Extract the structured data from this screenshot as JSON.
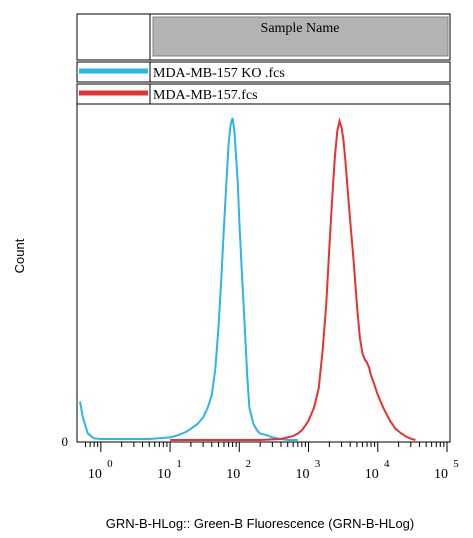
{
  "chart_data": {
    "type": "line",
    "ylabel": "Count",
    "xlabel": "GRN-B-HLog:: Green-B Fluorescence (GRN-B-HLog)",
    "x_scale": "log",
    "xlim": [
      0.5,
      100000
    ],
    "ylim": [
      0,
      1.0
    ],
    "x_tick_values": [
      1,
      10,
      100,
      1000,
      10000,
      100000
    ],
    "x_tick_labels": [
      {
        "base": "10",
        "exp": "0"
      },
      {
        "base": "10",
        "exp": "1"
      },
      {
        "base": "10",
        "exp": "2"
      },
      {
        "base": "10",
        "exp": "3"
      },
      {
        "base": "10",
        "exp": "4"
      },
      {
        "base": "10",
        "exp": "5"
      }
    ],
    "y_tick_label": "0",
    "legend": {
      "header": "Sample Name",
      "placement": "top"
    },
    "series": [
      {
        "name": "MDA-MB-157 KO .fcs",
        "color": "#2bb5e8",
        "x": [
          0.5,
          0.55,
          0.65,
          0.8,
          1.0,
          5,
          10,
          13,
          17,
          20,
          25,
          30,
          35,
          40,
          45,
          50,
          55,
          60,
          65,
          70,
          75,
          80,
          85,
          90,
          95,
          100,
          110,
          120,
          130,
          140,
          160,
          180,
          200,
          250,
          300,
          350,
          400,
          500,
          700
        ],
        "y": [
          0.12,
          0.07,
          0.02,
          0.005,
          0.003,
          0.003,
          0.008,
          0.015,
          0.025,
          0.035,
          0.05,
          0.07,
          0.1,
          0.14,
          0.22,
          0.35,
          0.5,
          0.66,
          0.8,
          0.92,
          0.98,
          1.0,
          0.96,
          0.88,
          0.8,
          0.68,
          0.5,
          0.35,
          0.2,
          0.1,
          0.05,
          0.03,
          0.02,
          0.015,
          0.008,
          0.005,
          0.003,
          0.0,
          0.0
        ]
      },
      {
        "name": "MDA-MB-157.fcs",
        "color": "#e8312f",
        "x": [
          10,
          50,
          200,
          400,
          500,
          600,
          700,
          800,
          900,
          1000,
          1200,
          1400,
          1600,
          1800,
          2000,
          2200,
          2400,
          2600,
          2800,
          3000,
          3200,
          3400,
          3600,
          4000,
          4500,
          5000,
          5500,
          6000,
          6500,
          7000,
          7500,
          8000,
          9000,
          10000,
          12000,
          15000,
          18000,
          22000,
          26000,
          30000,
          35000
        ],
        "y": [
          0.0,
          0.0,
          0.0,
          0.003,
          0.008,
          0.012,
          0.02,
          0.03,
          0.045,
          0.06,
          0.1,
          0.16,
          0.28,
          0.42,
          0.6,
          0.75,
          0.88,
          0.96,
          0.99,
          0.97,
          0.93,
          0.87,
          0.8,
          0.68,
          0.55,
          0.42,
          0.32,
          0.27,
          0.25,
          0.24,
          0.225,
          0.2,
          0.17,
          0.14,
          0.1,
          0.06,
          0.035,
          0.02,
          0.01,
          0.004,
          0.0
        ]
      }
    ]
  }
}
